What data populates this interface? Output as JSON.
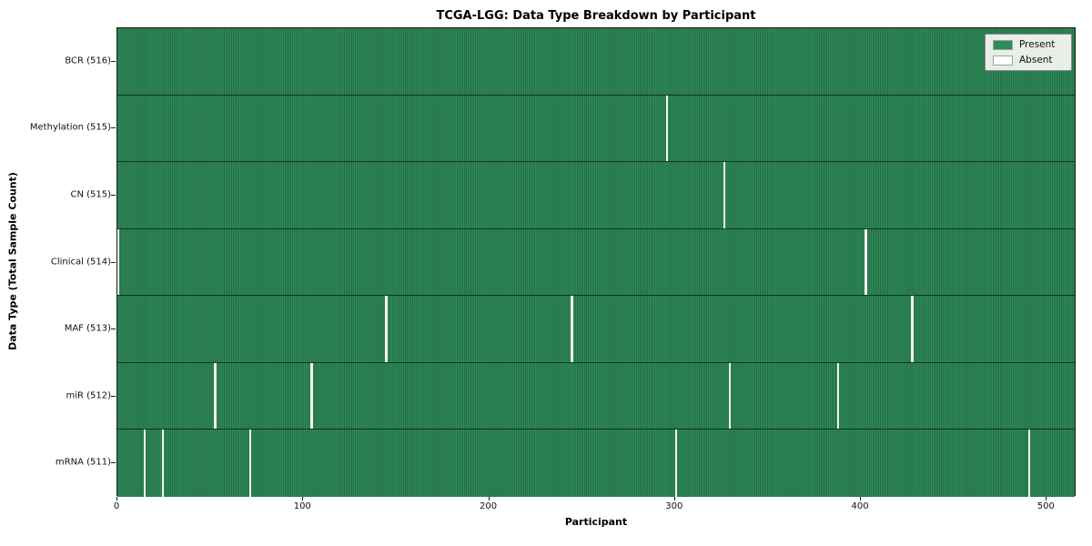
{
  "chart_data": {
    "type": "heatmap",
    "title": "TCGA-LGG: Data Type Breakdown by Participant",
    "xlabel": "Participant",
    "ylabel": "Data Type (Total Sample Count)",
    "x_ticks": [
      0,
      100,
      200,
      300,
      400,
      500
    ],
    "xlim": [
      0,
      516
    ],
    "n_participants": 516,
    "legend": [
      {
        "label": "Present",
        "color": "#2e8b57"
      },
      {
        "label": "Absent",
        "color": "#ffffff"
      }
    ],
    "colors": {
      "present": "#2e8b57",
      "absent": "#ffffff"
    },
    "rows": [
      {
        "name": "BCR",
        "total": 516,
        "label": "BCR (516)",
        "absent_participants": []
      },
      {
        "name": "Methylation",
        "total": 515,
        "label": "Methylation (515)",
        "absent_participants": [
          295
        ]
      },
      {
        "name": "CN",
        "total": 515,
        "label": "CN (515)",
        "absent_participants": [
          326
        ]
      },
      {
        "name": "Clinical",
        "total": 514,
        "label": "Clinical (514)",
        "absent_participants": [
          0,
          402
        ]
      },
      {
        "name": "MAF",
        "total": 513,
        "label": "MAF (513)",
        "absent_participants": [
          144,
          244,
          427
        ]
      },
      {
        "name": "miR",
        "total": 512,
        "label": "miR (512)",
        "absent_participants": [
          52,
          104,
          329,
          387
        ]
      },
      {
        "name": "mRNA",
        "total": 511,
        "label": "mRNA (511)",
        "absent_participants": [
          14,
          24,
          71,
          300,
          490
        ]
      }
    ]
  }
}
